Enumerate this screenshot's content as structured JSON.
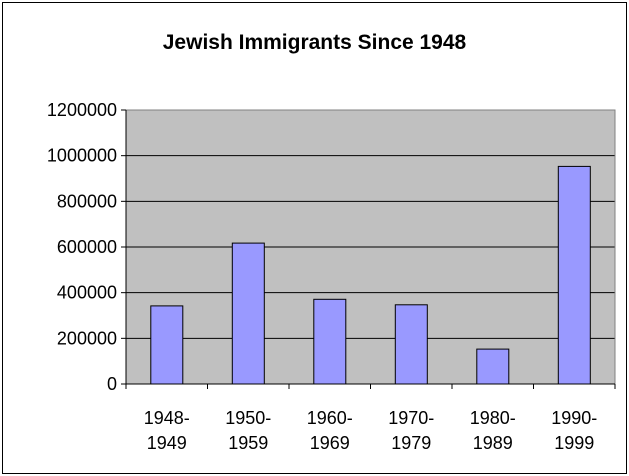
{
  "chart_data": {
    "type": "bar",
    "title": "Jewish Immigrants Since 1948",
    "xlabel": "",
    "ylabel": "",
    "categories": [
      [
        "1948-",
        "1949"
      ],
      [
        "1950-",
        "1959"
      ],
      [
        "1960-",
        "1969"
      ],
      [
        "1970-",
        "1979"
      ],
      [
        "1980-",
        "1989"
      ],
      [
        "1990-",
        "1999"
      ]
    ],
    "values": [
      342000,
      617000,
      371000,
      347000,
      153000,
      953000
    ],
    "ylim": [
      0,
      1200000
    ],
    "yticks": [
      "0",
      "200000",
      "400000",
      "600000",
      "800000",
      "1000000",
      "1200000"
    ],
    "grid": true,
    "legend": "none",
    "colors": {
      "plot_background": "#c0c0c0",
      "bar_fill": "#9999ff",
      "bar_stroke": "#000000",
      "gridline": "#000000"
    }
  }
}
